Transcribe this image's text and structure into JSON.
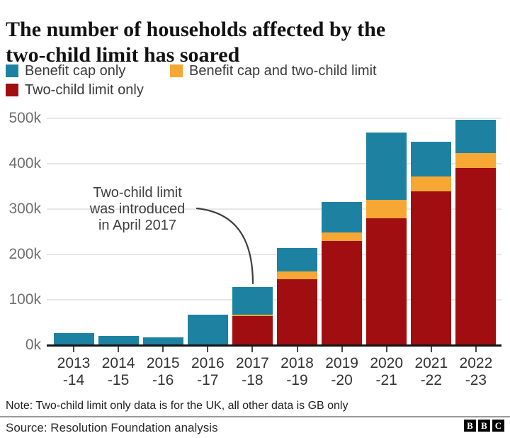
{
  "title": {
    "text": "The number of households affected by the\ntwo-child limit has soared"
  },
  "legend": [
    {
      "label": "Benefit cap only",
      "color": "#1d82a2"
    },
    {
      "label": "Benefit cap and two-child limit",
      "color": "#f7a733"
    },
    {
      "label": "Two-child limit only",
      "color": "#a00e11"
    }
  ],
  "chart_data": {
    "type": "bar",
    "stacked": true,
    "title": "The number of households affected by the two-child limit has soared",
    "unit": "thousands of households",
    "categories": [
      "2013-14",
      "2014-15",
      "2015-16",
      "2016-17",
      "2017-18",
      "2018-19",
      "2019-20",
      "2020-21",
      "2021-22",
      "2022-23"
    ],
    "series": [
      {
        "name": "Two-child limit only",
        "color": "#a00e11",
        "values": [
          0,
          0,
          0,
          0,
          64,
          146,
          229,
          280,
          339,
          390
        ]
      },
      {
        "name": "Benefit cap and two-child limit",
        "color": "#f7a733",
        "values": [
          0,
          0,
          0,
          0,
          4,
          17,
          19,
          40,
          33,
          33
        ]
      },
      {
        "name": "Benefit cap only",
        "color": "#1d82a2",
        "values": [
          27,
          21,
          17,
          67,
          60,
          51,
          67,
          149,
          76,
          74
        ]
      }
    ],
    "stack_order": "bottom_to_top",
    "ylim": [
      0,
      500
    ],
    "y_ticks": [
      {
        "label": "0k",
        "value": 0
      },
      {
        "label": "100k",
        "value": 100
      },
      {
        "label": "200k",
        "value": 200
      },
      {
        "label": "300k",
        "value": 300
      },
      {
        "label": "400k",
        "value": 400
      },
      {
        "label": "500k",
        "value": 500
      }
    ],
    "grid": "horizontal",
    "legend_position": "top",
    "annotation": {
      "text": "Two-child limit\nwas introduced\nin April 2017",
      "points_to": "2017-18"
    }
  },
  "note": "Note: Two-child limit only data is for the UK, all other data is GB only",
  "source": "Source: Resolution Foundation analysis",
  "logo": [
    "B",
    "B",
    "C"
  ]
}
